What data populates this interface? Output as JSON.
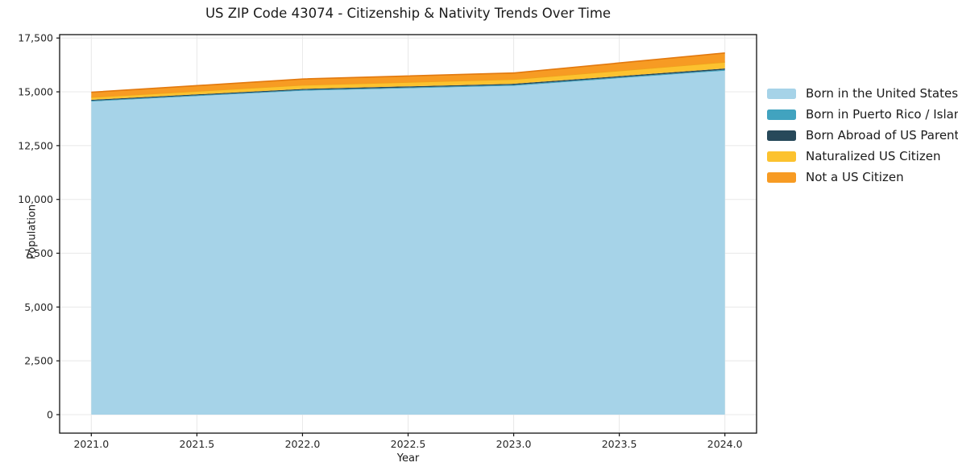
{
  "chart_data": {
    "type": "area",
    "stacked": true,
    "title": "US ZIP Code 43074 - Citizenship & Nativity Trends Over Time",
    "xlabel": "Year",
    "ylabel": "Population",
    "x": [
      2021,
      2022,
      2023,
      2024
    ],
    "series": [
      {
        "name": "Born in the United States",
        "color": "#A6D3E8",
        "values": [
          14550,
          15050,
          15280,
          15980
        ]
      },
      {
        "name": "Born in Puerto Rico / Islands",
        "color": "#41A3BF",
        "values": [
          35,
          35,
          40,
          45
        ]
      },
      {
        "name": "Born Abroad of US Parent(s)",
        "color": "#27495A",
        "values": [
          45,
          50,
          55,
          60
        ]
      },
      {
        "name": "Naturalized US Citizen",
        "color": "#FCC22F",
        "edge": "#EFA21C",
        "values": [
          120,
          180,
          210,
          300
        ]
      },
      {
        "name": "Not a US Citizen",
        "color": "#F79B23",
        "edge": "#E2790F",
        "values": [
          230,
          280,
          290,
          420
        ]
      }
    ],
    "x_ticks": {
      "values": [
        2021.0,
        2021.5,
        2022.0,
        2022.5,
        2023.0,
        2023.5,
        2024.0
      ],
      "labels": [
        "2021.0",
        "2021.5",
        "2022.0",
        "2022.5",
        "2023.0",
        "2023.5",
        "2024.0"
      ]
    },
    "y_ticks": {
      "values": [
        0,
        2500,
        5000,
        7500,
        10000,
        12500,
        15000,
        17500
      ],
      "labels": [
        "0",
        "2,500",
        "5,000",
        "7,500",
        "10,000",
        "12,500",
        "15,000",
        "17,500"
      ]
    },
    "x_range": [
      2020.85,
      2024.15
    ],
    "y_range": [
      -860,
      17658
    ],
    "grid": true,
    "grid_color": "#e8e8e8",
    "axis_color": "#1a1a1a",
    "tick_label_color": "#262626",
    "legend_position": "right"
  }
}
